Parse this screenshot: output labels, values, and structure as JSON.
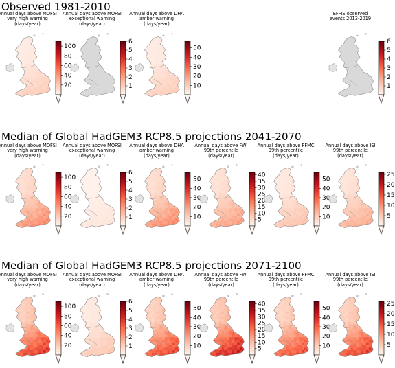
{
  "figure": {
    "sections": [
      {
        "title": "Observed 1981-2010",
        "panels": [
          {
            "title": "Annual days above MOFSI\nvery high warning\n(days/year)",
            "ticks": [
              "20",
              "40",
              "60",
              "80",
              "100"
            ],
            "vmin": 0,
            "vmax": 110,
            "cmap": "reds",
            "map_level": 0.16
          },
          {
            "title": "Annual days above MOFSI\nexceptional warning\n(days/year)",
            "ticks": [
              "1",
              "2",
              "3",
              "4",
              "5",
              "6"
            ],
            "vmin": 0,
            "vmax": 6,
            "cmap": "reds",
            "map_level": 0.0
          },
          {
            "title": "Annual days above DHA\namber warning\n(days/year)",
            "ticks": [
              "10",
              "20",
              "30",
              "40",
              "50"
            ],
            "vmin": 0,
            "vmax": 57,
            "cmap": "reds",
            "map_level": 0.16
          },
          null,
          null,
          {
            "title": "EFFIS observed\nevents 2013-2019",
            "ticks": [
              "1",
              "2",
              "3",
              "4",
              "5",
              "6"
            ],
            "vmin": 0,
            "vmax": 6,
            "cmap": "reds",
            "map_level": 0.0
          }
        ]
      },
      {
        "title": "Median of Global HadGEM3 RCP8.5 projections 2041-2070",
        "panels": [
          {
            "title": "Annual days above MOFSI\nvery high warning\n(days/year)",
            "ticks": [
              "20",
              "40",
              "60",
              "80",
              "100"
            ],
            "vmin": 0,
            "vmax": 110,
            "cmap": "reds",
            "map_level": 0.38
          },
          {
            "title": "Annual days above MOFSI\nexceptional warning\n(days/year)",
            "ticks": [
              "1",
              "2",
              "3",
              "4",
              "5",
              "6"
            ],
            "vmin": 0,
            "vmax": 6,
            "cmap": "reds",
            "map_level": 0.06
          },
          {
            "title": "Annual days above DHA\namber warning\n(days/year)",
            "ticks": [
              "10",
              "20",
              "30",
              "40",
              "50"
            ],
            "vmin": 0,
            "vmax": 57,
            "cmap": "reds",
            "map_level": 0.38
          },
          {
            "title": "Annual days above FWI\n99th percentile\n(days/year)",
            "ticks": [
              "5",
              "10",
              "15",
              "20",
              "25",
              "30",
              "35",
              "40"
            ],
            "vmin": 0,
            "vmax": 42,
            "cmap": "reds",
            "map_level": 0.32
          },
          {
            "title": "Annual days above FFMC\n99th percentile\n(days/year)",
            "ticks": [
              "10",
              "20",
              "30",
              "40",
              "50"
            ],
            "vmin": 0,
            "vmax": 57,
            "cmap": "reds",
            "map_level": 0.2
          },
          {
            "title": "Annual days above ISI\n99th percentile\n(days/year)",
            "ticks": [
              "5",
              "10",
              "15",
              "20",
              "25"
            ],
            "vmin": 0,
            "vmax": 26,
            "cmap": "reds",
            "map_level": 0.28
          }
        ]
      },
      {
        "title": "Median of Global HadGEM3 RCP8.5 projections 2071-2100",
        "panels": [
          {
            "title": "Annual days above MOFSI\nvery high warning\n(days/year)",
            "ticks": [
              "20",
              "40",
              "60",
              "80",
              "100"
            ],
            "vmin": 0,
            "vmax": 110,
            "cmap": "reds",
            "map_level": 0.62
          },
          {
            "title": "Annual days above MOFSI\nexceptional warning\n(days/year)",
            "ticks": [
              "1",
              "2",
              "3",
              "4",
              "5",
              "6"
            ],
            "vmin": 0,
            "vmax": 6,
            "cmap": "reds",
            "map_level": 0.18
          },
          {
            "title": "Annual days above DHA\namber warning\n(days/year)",
            "ticks": [
              "10",
              "20",
              "30",
              "40",
              "50"
            ],
            "vmin": 0,
            "vmax": 57,
            "cmap": "reds",
            "map_level": 0.58
          },
          {
            "title": "Annual days above FWI\n99th percentile\n(days/year)",
            "ticks": [
              "5",
              "10",
              "15",
              "20",
              "25",
              "30",
              "35",
              "40"
            ],
            "vmin": 0,
            "vmax": 42,
            "cmap": "reds",
            "map_level": 0.7
          },
          {
            "title": "Annual days above FFMC\n99th percentile\n(days/year)",
            "ticks": [
              "10",
              "20",
              "30",
              "40",
              "50"
            ],
            "vmin": 0,
            "vmax": 57,
            "cmap": "reds",
            "map_level": 0.55
          },
          {
            "title": "Annual days above ISI\n99th percentile\n(days/year)",
            "ticks": [
              "5",
              "10",
              "15",
              "20",
              "25"
            ],
            "vmin": 0,
            "vmax": 26,
            "cmap": "reds",
            "map_level": 0.6
          }
        ]
      }
    ]
  },
  "chart_data": {
    "type": "heatmap",
    "subtype": "choropleth maps with colorbars",
    "grid": false,
    "colorbar_placement": "right of each map",
    "colors": {
      "low": "#fff5f0",
      "high": "#67000d",
      "no_data_land": "#d9d9d9",
      "coastline": "#888888"
    }
  }
}
